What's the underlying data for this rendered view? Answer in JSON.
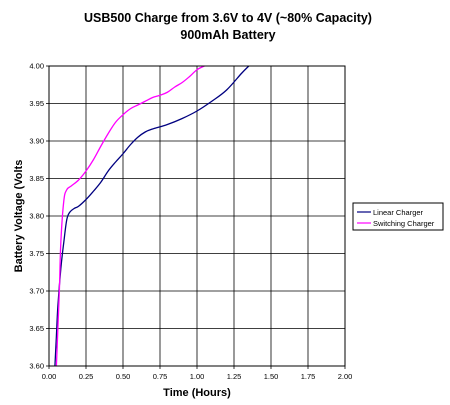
{
  "chart_data": {
    "type": "line",
    "title": "USB500 Charge from 3.6V to 4V (~80% Capacity)",
    "subtitle": "900mAh Battery",
    "xlabel": "Time (Hours)",
    "ylabel": "Battery Voltage (Volts",
    "xlim": [
      0,
      2
    ],
    "ylim": [
      3.6,
      4.0
    ],
    "xticks": [
      "0.00",
      "0.25",
      "0.50",
      "0.75",
      "1.00",
      "1.25",
      "1.50",
      "1.75",
      "2.00"
    ],
    "yticks": [
      "3.60",
      "3.65",
      "3.70",
      "3.75",
      "3.80",
      "3.85",
      "3.90",
      "3.95",
      "4.00"
    ],
    "grid": true,
    "legend_position": "right",
    "series": [
      {
        "name": "Linear Charger",
        "color": "#000080",
        "x": [
          0.04,
          0.05,
          0.06,
          0.08,
          0.1,
          0.12,
          0.14,
          0.17,
          0.2,
          0.25,
          0.3,
          0.35,
          0.4,
          0.45,
          0.5,
          0.55,
          0.6,
          0.65,
          0.7,
          0.8,
          0.9,
          1.0,
          1.1,
          1.2,
          1.3,
          1.35
        ],
        "y": [
          3.6,
          3.64,
          3.68,
          3.73,
          3.765,
          3.795,
          3.805,
          3.81,
          3.813,
          3.822,
          3.833,
          3.845,
          3.86,
          3.872,
          3.883,
          3.895,
          3.905,
          3.912,
          3.916,
          3.922,
          3.93,
          3.94,
          3.953,
          3.968,
          3.99,
          4.0
        ]
      },
      {
        "name": "Switching Charger",
        "color": "#ff00ff",
        "x": [
          0.05,
          0.06,
          0.07,
          0.08,
          0.1,
          0.12,
          0.15,
          0.2,
          0.25,
          0.3,
          0.35,
          0.4,
          0.45,
          0.5,
          0.55,
          0.6,
          0.65,
          0.7,
          0.75,
          0.8,
          0.85,
          0.9,
          0.95,
          1.0,
          1.05
        ],
        "y": [
          3.6,
          3.65,
          3.7,
          3.765,
          3.82,
          3.835,
          3.84,
          3.848,
          3.86,
          3.875,
          3.893,
          3.91,
          3.925,
          3.935,
          3.943,
          3.948,
          3.953,
          3.958,
          3.961,
          3.965,
          3.972,
          3.978,
          3.986,
          3.995,
          4.0
        ]
      }
    ]
  },
  "colors": {
    "plot_background": "#ffffff",
    "grid": "#000000",
    "axis": "#000000"
  }
}
